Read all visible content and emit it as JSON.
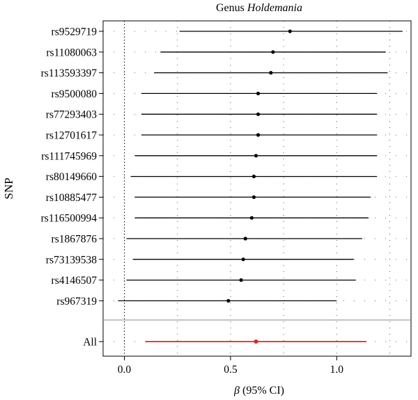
{
  "chart_data": {
    "type": "scatter",
    "subtype": "forest-plot",
    "title_prefix": "Genus",
    "title_taxon": "Holdemania",
    "xlabel_symbol": "β",
    "xlabel_suffix": "(95% CI)",
    "ylabel": "SNP",
    "xlim": [
      -0.1,
      1.35
    ],
    "xticks": [
      0.0,
      0.5,
      1.0
    ],
    "xtick_labels": [
      "0.0",
      "0.5",
      "1.0"
    ],
    "grid": true,
    "point_color": "#000000",
    "overall_color": "#e8201e",
    "snps": [
      {
        "label": "rs9529719",
        "beta": 0.78,
        "lower": 0.26,
        "upper": 1.31
      },
      {
        "label": "rs11080063",
        "beta": 0.7,
        "lower": 0.17,
        "upper": 1.23
      },
      {
        "label": "rs113593397",
        "beta": 0.69,
        "lower": 0.14,
        "upper": 1.24
      },
      {
        "label": "rs9500080",
        "beta": 0.63,
        "lower": 0.08,
        "upper": 1.19
      },
      {
        "label": "rs77293403",
        "beta": 0.63,
        "lower": 0.08,
        "upper": 1.19
      },
      {
        "label": "rs12701617",
        "beta": 0.63,
        "lower": 0.08,
        "upper": 1.19
      },
      {
        "label": "rs111745969",
        "beta": 0.62,
        "lower": 0.05,
        "upper": 1.19
      },
      {
        "label": "rs80149660",
        "beta": 0.61,
        "lower": 0.03,
        "upper": 1.19
      },
      {
        "label": "rs10885477",
        "beta": 0.61,
        "lower": 0.05,
        "upper": 1.16
      },
      {
        "label": "rs116500994",
        "beta": 0.6,
        "lower": 0.05,
        "upper": 1.15
      },
      {
        "label": "rs1867876",
        "beta": 0.57,
        "lower": 0.01,
        "upper": 1.12
      },
      {
        "label": "rs73139538",
        "beta": 0.56,
        "lower": 0.04,
        "upper": 1.08
      },
      {
        "label": "rs4146507",
        "beta": 0.55,
        "lower": 0.01,
        "upper": 1.09
      },
      {
        "label": "rs967319",
        "beta": 0.49,
        "lower": -0.03,
        "upper": 1.0
      }
    ],
    "overall": {
      "label": "All",
      "beta": 0.62,
      "lower": 0.1,
      "upper": 1.14
    }
  }
}
